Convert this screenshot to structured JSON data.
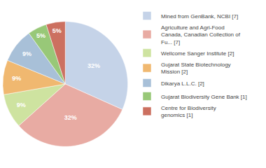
{
  "chart_data": {
    "type": "pie",
    "categories": [
      "Mined from GenBank, NCBI [7]",
      "Agriculture and Agri-Food\nCanada, Canadian Collection of\nFu... [7]",
      "Wellcome Sanger Institute [2]",
      "Gujarat State Biotechnology\nMission [2]",
      "Dikarya L.L.C. [2]",
      "Gujarat Biodiversity Gene Bank [1]",
      "Centre for Biodiversity\ngenomics [1]"
    ],
    "values": [
      32,
      32,
      9,
      9,
      9,
      5,
      5
    ],
    "value_labels": [
      "32%",
      "32%",
      "9%",
      "9%",
      "9%",
      "5%",
      "5%"
    ],
    "colors": [
      "#c5d3e8",
      "#e8aba3",
      "#cee3a0",
      "#f0b870",
      "#a8c0d8",
      "#98c878",
      "#cc7060"
    ],
    "data_labels": true,
    "legend": "right"
  }
}
